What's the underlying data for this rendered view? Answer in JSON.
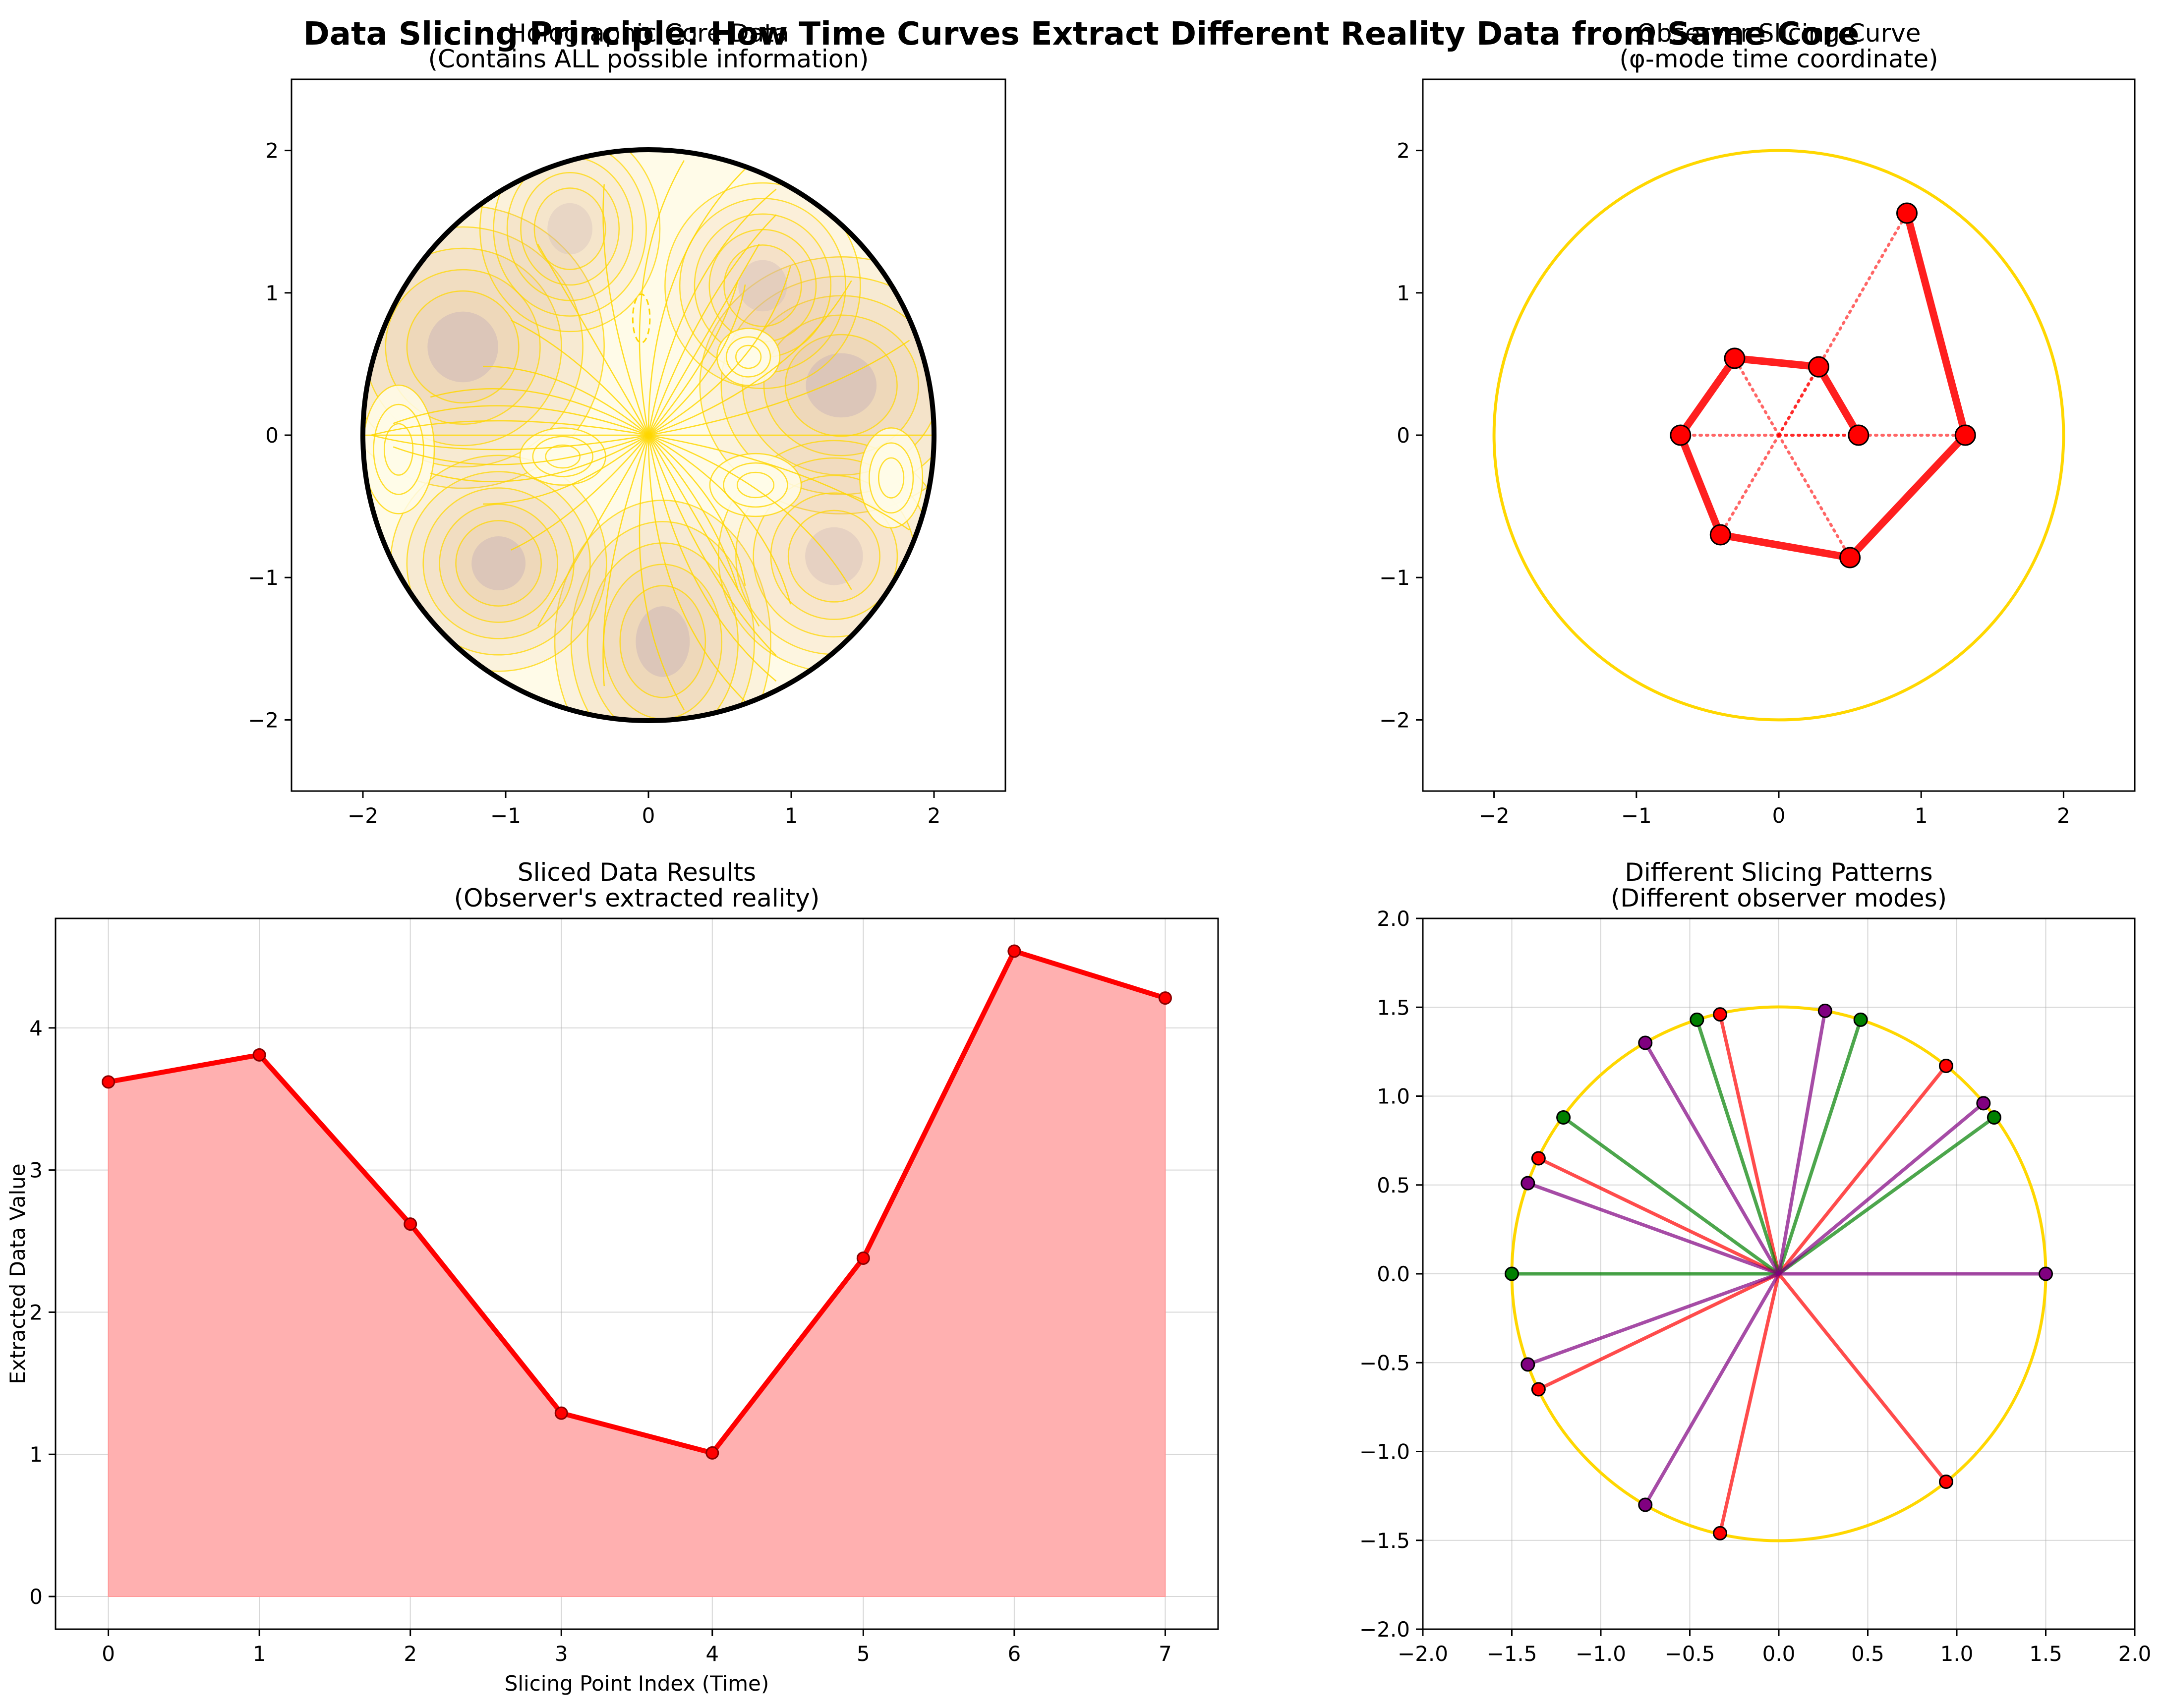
{
  "suptitle": "Data Slicing Principle: How Time Curves Extract Different Reality Data from Same Core",
  "chart_data": [
    {
      "id": "holographic-core",
      "type": "contour",
      "title": "Holographic Core Data",
      "subtitle": "(Contains ALL possible information)",
      "xlim": [
        -2.5,
        2.5
      ],
      "ylim": [
        -2.5,
        2.5
      ],
      "xticks": [
        -2,
        -1,
        0,
        1,
        2
      ],
      "yticks": [
        -2,
        -1,
        0,
        1,
        2
      ],
      "xtick_labels": [
        "−2",
        "−1",
        "0",
        "1",
        "2"
      ],
      "ytick_labels": [
        "−2",
        "−1",
        "0",
        "1",
        "2"
      ],
      "boundary_radius": 2,
      "grid": false,
      "colors": {
        "fill_high": "#e7c7b0",
        "fill_low": "#fffbe8",
        "contour_line": "#ffd700",
        "boundary": "#000000"
      }
    },
    {
      "id": "observer-slicing-curve",
      "type": "line",
      "title": "Observer Slicing Curve",
      "subtitle": "(φ-mode time coordinate)",
      "xlim": [
        -2.5,
        2.5
      ],
      "ylim": [
        -2.5,
        2.5
      ],
      "xticks": [
        -2,
        -1,
        0,
        1,
        2
      ],
      "yticks": [
        -2,
        -1,
        0,
        1,
        2
      ],
      "xtick_labels": [
        "−2",
        "−1",
        "0",
        "1",
        "2"
      ],
      "ytick_labels": [
        "−2",
        "−1",
        "0",
        "1",
        "2"
      ],
      "grid": false,
      "circle_radius": 2,
      "points": [
        {
          "x": 0.56,
          "y": 0.0
        },
        {
          "x": 0.28,
          "y": 0.48
        },
        {
          "x": -0.31,
          "y": 0.54
        },
        {
          "x": -0.69,
          "y": 0.0
        },
        {
          "x": -0.41,
          "y": -0.7
        },
        {
          "x": 0.5,
          "y": -0.86
        },
        {
          "x": 1.31,
          "y": 0.0
        },
        {
          "x": 0.9,
          "y": 1.56
        }
      ],
      "colors": {
        "curve": "#ff0000",
        "circle": "#ffd700",
        "marker_edge": "#000000"
      }
    },
    {
      "id": "sliced-data-results",
      "type": "area",
      "title": "Sliced Data Results",
      "subtitle": "(Observer's extracted reality)",
      "xlabel": "Slicing Point Index (Time)",
      "ylabel": "Extracted Data Value",
      "x": [
        0,
        1,
        2,
        3,
        4,
        5,
        6,
        7
      ],
      "values": [
        3.62,
        3.81,
        2.62,
        1.29,
        1.01,
        2.38,
        4.54,
        4.21
      ],
      "xlim": [
        -0.35,
        7.35
      ],
      "ylim": [
        -0.23,
        4.77
      ],
      "xticks": [
        0,
        1,
        2,
        3,
        4,
        5,
        6,
        7
      ],
      "yticks": [
        0,
        1,
        2,
        3,
        4
      ],
      "xtick_labels": [
        "0",
        "1",
        "2",
        "3",
        "4",
        "5",
        "6",
        "7"
      ],
      "ytick_labels": [
        "0",
        "1",
        "2",
        "3",
        "4"
      ],
      "grid": true,
      "colors": {
        "line": "#ff0000",
        "fill": "#ffb0b0"
      }
    },
    {
      "id": "different-slicing-patterns",
      "type": "line",
      "title": "Different Slicing Patterns",
      "subtitle": "(Different observer modes)",
      "xlim": [
        -2.0,
        2.0
      ],
      "ylim": [
        -2.0,
        2.0
      ],
      "xticks": [
        -2.0,
        -1.5,
        -1.0,
        -0.5,
        0.0,
        0.5,
        1.0,
        1.5,
        2.0
      ],
      "yticks": [
        -2.0,
        -1.5,
        -1.0,
        -0.5,
        0.0,
        0.5,
        1.0,
        1.5,
        2.0
      ],
      "xtick_labels": [
        "−2.0",
        "−1.5",
        "−1.0",
        "−0.5",
        "0.0",
        "0.5",
        "1.0",
        "1.5",
        "2.0"
      ],
      "ytick_labels": [
        "−2.0",
        "−1.5",
        "−1.0",
        "−0.5",
        "0.0",
        "0.5",
        "1.0",
        "1.5",
        "2.0"
      ],
      "grid": true,
      "circle_radius": 1.5,
      "series": [
        {
          "color": "#ff0000",
          "points": [
            {
              "x": 0.94,
              "y": 1.17
            },
            {
              "x": -0.33,
              "y": 1.46
            },
            {
              "x": -1.35,
              "y": 0.65
            },
            {
              "x": -1.35,
              "y": -0.65
            },
            {
              "x": -0.33,
              "y": -1.46
            },
            {
              "x": 0.94,
              "y": -1.17
            }
          ]
        },
        {
          "color": "#008000",
          "points": [
            {
              "x": 1.21,
              "y": 0.88
            },
            {
              "x": 0.46,
              "y": 1.43
            },
            {
              "x": -0.46,
              "y": 1.43
            },
            {
              "x": -1.21,
              "y": 0.88
            },
            {
              "x": -1.5,
              "y": 0.0
            }
          ]
        },
        {
          "color": "#800080",
          "points": [
            {
              "x": 1.5,
              "y": 0.0
            },
            {
              "x": 1.15,
              "y": 0.96
            },
            {
              "x": 0.26,
              "y": 1.48
            },
            {
              "x": -0.75,
              "y": 1.3
            },
            {
              "x": -1.41,
              "y": 0.51
            },
            {
              "x": -1.41,
              "y": -0.51
            },
            {
              "x": -0.75,
              "y": -1.3
            }
          ]
        }
      ],
      "colors": {
        "circle": "#ffd700"
      }
    }
  ]
}
